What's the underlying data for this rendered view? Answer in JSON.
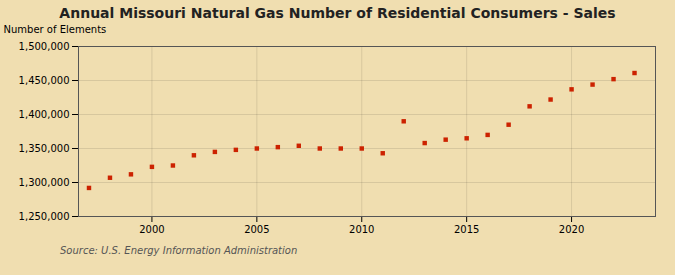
{
  "chart_data": {
    "type": "scatter",
    "title": "Annual Missouri Natural Gas Number of Residential Consumers - Sales",
    "ylabel": "Number of Elements",
    "source": "Source: U.S. Energy Information Administration",
    "x": [
      1997,
      1998,
      1999,
      2000,
      2001,
      2002,
      2003,
      2004,
      2005,
      2006,
      2007,
      2008,
      2009,
      2010,
      2011,
      2012,
      2013,
      2014,
      2015,
      2016,
      2017,
      2018,
      2019,
      2020,
      2021,
      2022,
      2023
    ],
    "values": [
      1292000,
      1307000,
      1312000,
      1323000,
      1325000,
      1340000,
      1345000,
      1348000,
      1350000,
      1352000,
      1354000,
      1350000,
      1350000,
      1350000,
      1343000,
      1390000,
      1358000,
      1363000,
      1365000,
      1370000,
      1385000,
      1412000,
      1422000,
      1437000,
      1444000,
      1452000,
      1461000
    ],
    "color": "#cc2200",
    "marker": "square",
    "xlim": [
      1996.5,
      2024
    ],
    "xticks": [
      2000,
      2005,
      2010,
      2015,
      2020
    ],
    "ylim": [
      1250000,
      1500000
    ],
    "yticks": [
      {
        "value": 1250000,
        "label": "1,250,000"
      },
      {
        "value": 1300000,
        "label": "1,300,000"
      },
      {
        "value": 1350000,
        "label": "1,350,000"
      },
      {
        "value": 1400000,
        "label": "1,400,000"
      },
      {
        "value": 1450000,
        "label": "1,450,000"
      },
      {
        "value": 1500000,
        "label": "1,500,000"
      }
    ],
    "grid": true
  }
}
